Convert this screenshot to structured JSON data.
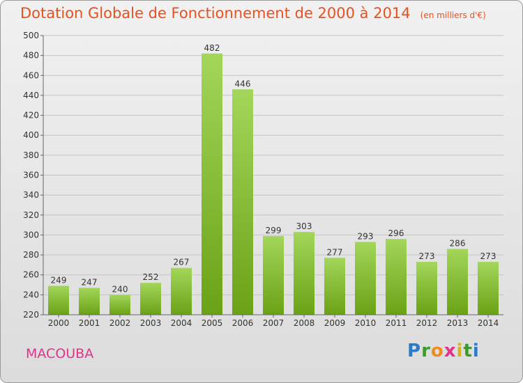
{
  "header": {
    "title": "Dotation Globale de Fonctionnement de 2000 à 2014",
    "unit": "(en milliers d'€)"
  },
  "footer": {
    "commune": "MACOUBA",
    "brand_letters": [
      "P",
      "r",
      "o",
      "x",
      "i",
      "t",
      "i"
    ]
  },
  "colors": {
    "title": "#e8501e",
    "commune": "#e0348c",
    "bar_top": "#a3d65a",
    "bar_bottom": "#6aa216"
  },
  "chart_data": {
    "type": "bar",
    "categories": [
      "2000",
      "2001",
      "2002",
      "2003",
      "2004",
      "2005",
      "2006",
      "2007",
      "2008",
      "2009",
      "2010",
      "2011",
      "2012",
      "2013",
      "2014"
    ],
    "values": [
      249,
      247,
      240,
      252,
      267,
      482,
      446,
      299,
      303,
      277,
      293,
      296,
      273,
      286,
      273
    ],
    "title": "Dotation Globale de Fonctionnement de 2000 à 2014",
    "subtitle": "(en milliers d'€)",
    "xlabel": "",
    "ylabel": "",
    "ylim": [
      220,
      500
    ],
    "yticks": [
      220,
      240,
      260,
      280,
      300,
      320,
      340,
      360,
      380,
      400,
      420,
      440,
      460,
      480,
      500
    ],
    "grid": true,
    "data_labels": true
  }
}
